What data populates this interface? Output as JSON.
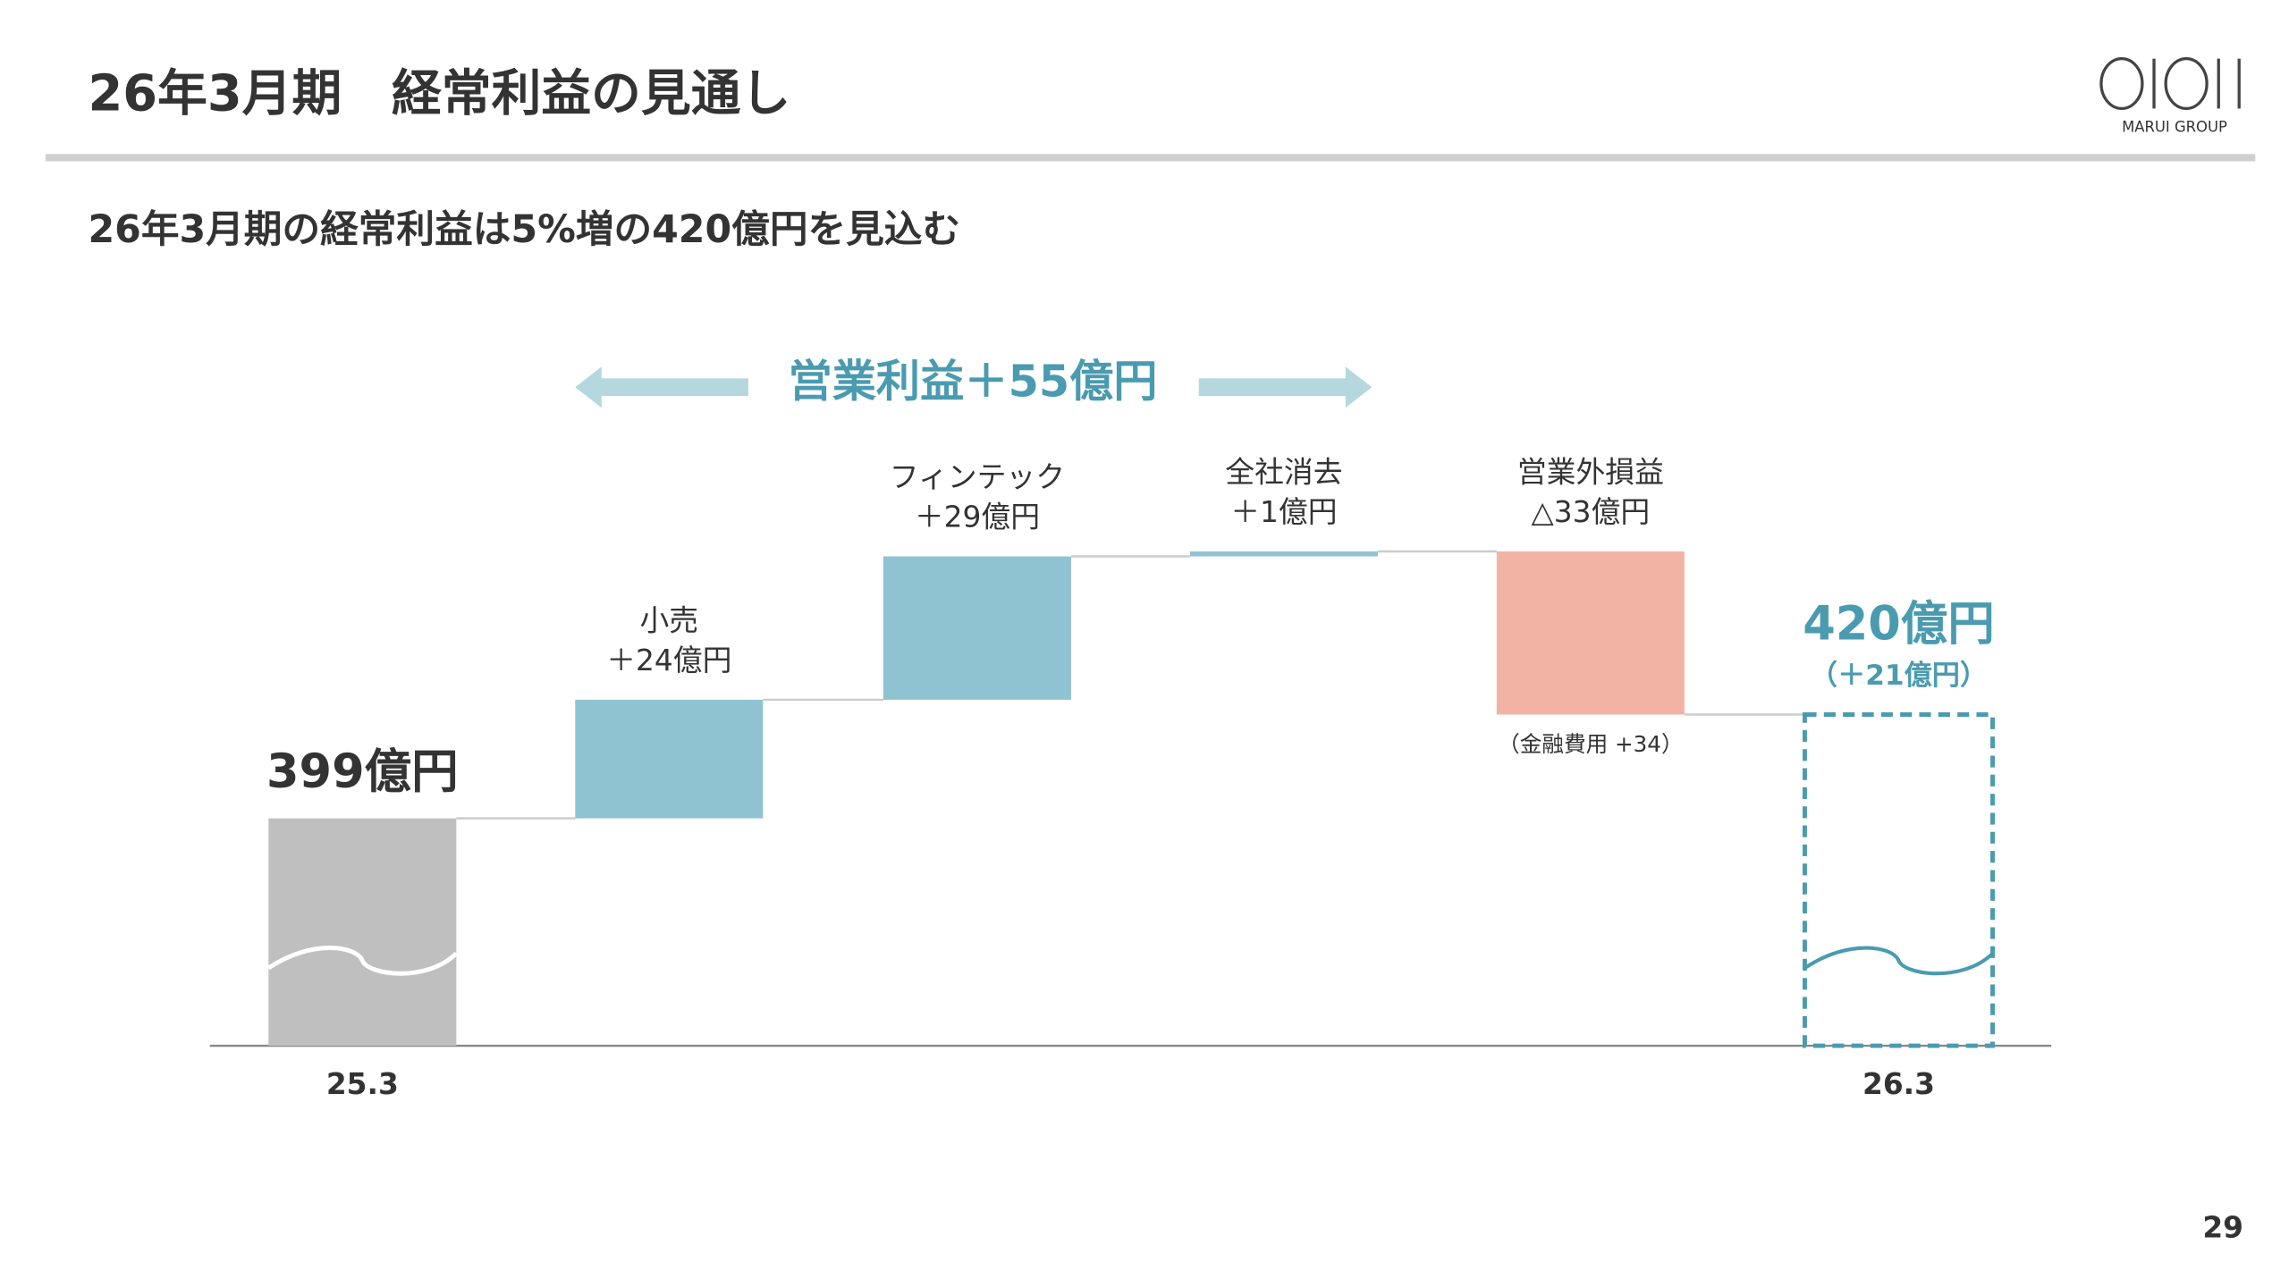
{
  "header": {
    "title": "26年3月期　経常利益の見通し",
    "logo_sub": "MARUI GROUP"
  },
  "subtitle": "26年3月期の経常利益は5%増の420億円を見込む",
  "chart_data": {
    "type": "waterfall",
    "categories": [
      "25.3",
      null,
      null,
      null,
      null,
      "26.3"
    ],
    "step_names": [
      null,
      "小売",
      "フィンテック",
      "全社消去",
      "営業外損益",
      null
    ],
    "values": [
      399,
      24,
      29,
      1,
      -33,
      420
    ],
    "value_labels": [
      "399億円",
      "＋24億円",
      "＋29億円",
      "＋1億円",
      "△33億円",
      "420億円"
    ],
    "total_change_label": "（＋21億円）",
    "annotation": "（金融費用 +34）",
    "bracket_label": "営業利益＋55億円",
    "ylim": [
      353,
      480
    ],
    "colors": {
      "total": "#bfbfbf",
      "increase": "#8fc3d1",
      "decrease": "#f2b3a5",
      "forecast": "#4a9bb0"
    }
  },
  "page_number": "29"
}
